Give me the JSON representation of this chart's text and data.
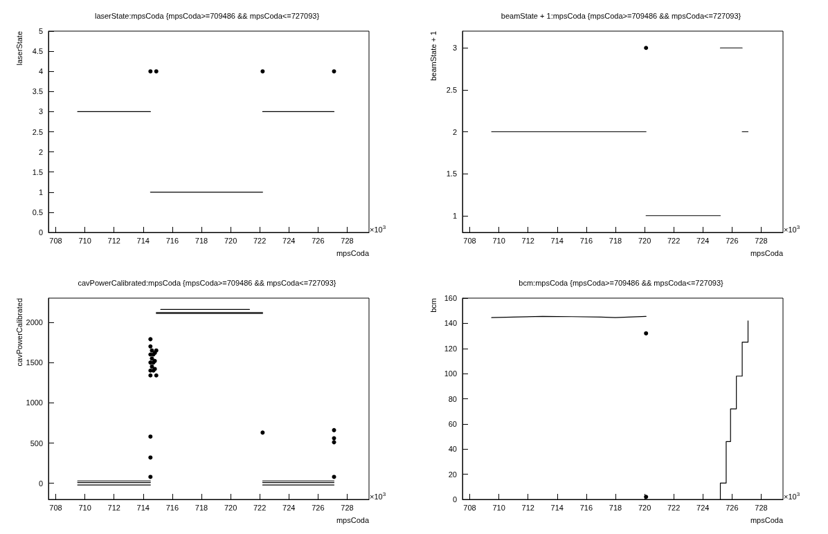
{
  "chart_data": [
    {
      "type": "scatter",
      "title": "laserState:mpsCoda {mpsCoda>=709486 && mpsCoda<=727093}",
      "xlabel": "mpsCoda",
      "ylabel": "laserState",
      "annotations": [
        "×10$^{3}$"
      ],
      "xlim": [
        707.5,
        729.5
      ],
      "xticks": [
        708,
        710,
        712,
        714,
        716,
        718,
        720,
        722,
        724,
        726,
        728
      ],
      "ylim": [
        0,
        5
      ],
      "yticks": [
        0,
        0.5,
        1,
        1.5,
        2,
        2.5,
        3,
        3.5,
        4,
        4.5,
        5
      ],
      "grid": false,
      "series": [
        {
          "marker": "circle",
          "color": "#000000",
          "x": [
            714.5,
            714.9,
            722.2,
            727.1
          ],
          "values": [
            4,
            4,
            4,
            4
          ]
        },
        {
          "type": "line",
          "marker": "none",
          "color": "#000000",
          "x": [
            709.5,
            712,
            714.5
          ],
          "values": [
            3,
            3,
            3
          ]
        },
        {
          "type": "line",
          "marker": "none",
          "color": "#000000",
          "x": [
            714.5,
            718,
            722.2
          ],
          "values": [
            1,
            1,
            1
          ]
        },
        {
          "type": "line",
          "marker": "none",
          "color": "#000000",
          "x": [
            722.2,
            725,
            727.1
          ],
          "values": [
            3,
            3,
            3
          ]
        }
      ]
    },
    {
      "type": "scatter",
      "title": "beamState + 1:mpsCoda {mpsCoda>=709486 && mpsCoda<=727093}",
      "xlabel": "mpsCoda",
      "ylabel": "beamState + 1",
      "annotations": [
        "×10$^{3}$"
      ],
      "xlim": [
        707.5,
        729.5
      ],
      "xticks": [
        708,
        710,
        712,
        714,
        716,
        718,
        720,
        722,
        724,
        726,
        728
      ],
      "ylim": [
        0.8,
        3.2
      ],
      "yticks": [
        1,
        1.5,
        2,
        2.5,
        3
      ],
      "grid": false,
      "series": [
        {
          "marker": "circle",
          "color": "#000000",
          "x": [
            720.1
          ],
          "values": [
            3
          ]
        },
        {
          "type": "line",
          "marker": "none",
          "color": "#000000",
          "x": [
            709.5,
            715,
            720.1
          ],
          "values": [
            2,
            2,
            2
          ]
        },
        {
          "type": "line",
          "marker": "none",
          "color": "#000000",
          "x": [
            720.1,
            722.5,
            725.2
          ],
          "values": [
            1,
            1,
            1
          ]
        },
        {
          "type": "line",
          "marker": "none",
          "color": "#000000",
          "x": [
            725.2,
            726,
            726.7
          ],
          "values": [
            3,
            3,
            3
          ]
        },
        {
          "type": "line",
          "marker": "none",
          "color": "#000000",
          "x": [
            726.7,
            727.1
          ],
          "values": [
            2,
            2
          ]
        }
      ]
    },
    {
      "type": "scatter",
      "title": "cavPowerCalibrated:mpsCoda {mpsCoda>=709486 && mpsCoda<=727093}",
      "xlabel": "mpsCoda",
      "ylabel": "cavPowerCalibrated",
      "annotations": [
        "×10$^{3}$"
      ],
      "xlim": [
        707.5,
        729.5
      ],
      "xticks": [
        708,
        710,
        712,
        714,
        716,
        718,
        720,
        722,
        724,
        726,
        728
      ],
      "ylim": [
        -200,
        2300
      ],
      "yticks": [
        0,
        500,
        1000,
        1500,
        2000
      ],
      "grid": false,
      "series": [
        {
          "marker": "circle",
          "color": "#000000",
          "x": [
            714.5,
            714.5,
            714.5,
            714.5,
            714.5,
            714.5,
            714.6,
            714.6,
            714.6,
            714.7,
            714.7,
            714.7,
            714.8,
            714.8,
            714.8,
            714.9,
            714.9,
            714.5,
            714.5,
            714.5,
            722.2,
            727.1,
            727.1,
            727.1,
            727.1
          ],
          "values": [
            1790,
            1700,
            1600,
            1500,
            1400,
            1340,
            1650,
            1550,
            1450,
            1600,
            1500,
            1400,
            1620,
            1520,
            1420,
            1650,
            1340,
            580,
            320,
            80,
            630,
            660,
            560,
            510,
            80
          ]
        },
        {
          "type": "line",
          "marker": "none",
          "color": "#000000",
          "x": [
            709.5,
            712,
            714.5
          ],
          "values": [
            30,
            30,
            30
          ]
        },
        {
          "type": "line",
          "marker": "none",
          "color": "#000000",
          "x": [
            709.5,
            712,
            714.5
          ],
          "values": [
            10,
            10,
            10
          ]
        },
        {
          "type": "line",
          "marker": "none",
          "color": "#000000",
          "x": [
            709.5,
            712,
            714.5
          ],
          "values": [
            -20,
            -20,
            -20
          ]
        },
        {
          "type": "line",
          "marker": "none",
          "color": "#000000",
          "x": [
            722.2,
            725,
            727.1
          ],
          "values": [
            30,
            30,
            30
          ]
        },
        {
          "type": "line",
          "marker": "none",
          "color": "#000000",
          "x": [
            722.2,
            725,
            727.1
          ],
          "values": [
            10,
            10,
            10
          ]
        },
        {
          "type": "line",
          "marker": "none",
          "color": "#000000",
          "x": [
            722.2,
            725,
            727.1
          ],
          "values": [
            -20,
            -20,
            -20
          ]
        },
        {
          "type": "line",
          "marker": "none",
          "color": "#000000",
          "x": [
            715.2,
            718,
            721.3
          ],
          "values": [
            2160,
            2160,
            2160
          ]
        },
        {
          "type": "line",
          "marker": "none",
          "color": "#000000",
          "x": [
            714.9,
            718,
            722.2
          ],
          "values": [
            2120,
            2120,
            2120
          ]
        },
        {
          "type": "line",
          "marker": "none",
          "color": "#000000",
          "x": [
            714.9,
            718,
            722.2
          ],
          "values": [
            2110,
            2110,
            2110
          ]
        }
      ]
    },
    {
      "type": "scatter",
      "title": "bcm:mpsCoda {mpsCoda>=709486 && mpsCoda<=727093}",
      "xlabel": "mpsCoda",
      "ylabel": "bcm",
      "annotations": [
        "×10$^{3}$"
      ],
      "xlim": [
        707.5,
        729.5
      ],
      "xticks": [
        708,
        710,
        712,
        714,
        716,
        718,
        720,
        722,
        724,
        726,
        728
      ],
      "ylim": [
        0,
        160
      ],
      "yticks": [
        0,
        20,
        40,
        60,
        80,
        100,
        120,
        140,
        160
      ],
      "grid": false,
      "series": [
        {
          "marker": "circle",
          "color": "#000000",
          "x": [
            720.1,
            720.1
          ],
          "values": [
            132,
            2
          ]
        },
        {
          "type": "line",
          "marker": "none",
          "color": "#000000",
          "x": [
            709.5,
            711,
            713,
            715,
            717,
            718,
            720.1
          ],
          "values": [
            144.5,
            145,
            145.5,
            145.3,
            145,
            144.5,
            145.5
          ]
        },
        {
          "type": "line",
          "marker": "none",
          "color": "#000000",
          "x": [
            725.2,
            725.2,
            725.6,
            725.6,
            725.9,
            725.9,
            726.3,
            726.3,
            726.7,
            726.7,
            727.1,
            727.1
          ],
          "values": [
            0,
            13,
            13,
            46,
            46,
            72,
            72,
            98,
            98,
            125,
            125,
            142
          ]
        }
      ]
    }
  ]
}
